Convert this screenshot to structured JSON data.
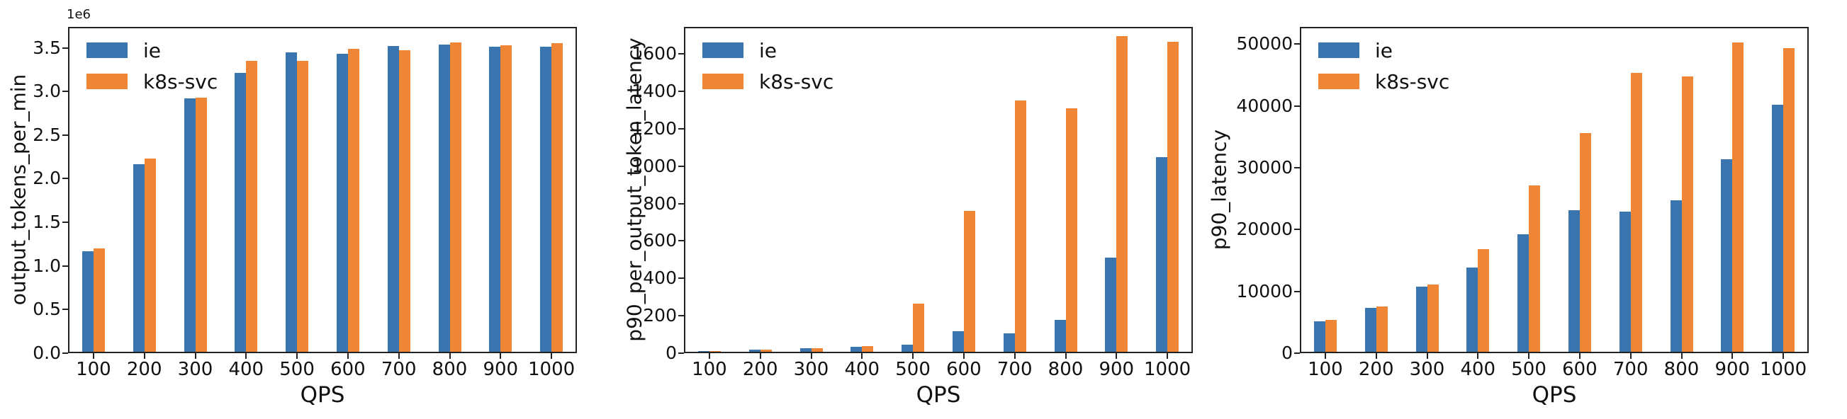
{
  "figure": {
    "background": "#ffffff",
    "xlabel": "QPS",
    "categories": [
      "100",
      "200",
      "300",
      "400",
      "500",
      "600",
      "700",
      "800",
      "900",
      "1000"
    ]
  },
  "colors": {
    "ie": "#3a75af",
    "k8s_svc": "#ef8636",
    "spine": "#222222",
    "text": "#111111"
  },
  "legend": {
    "items": [
      {
        "label": "ie",
        "color": "#3a75af"
      },
      {
        "label": "k8s-svc",
        "color": "#ef8636"
      }
    ]
  },
  "chart_data": [
    {
      "type": "bar",
      "title": "",
      "ylabel": "output_tokens_per_min",
      "xlabel": "QPS",
      "offset_text": "1e6",
      "legend_position": "upper-left",
      "grid": false,
      "categories": [
        100,
        200,
        300,
        400,
        500,
        600,
        700,
        800,
        900,
        1000
      ],
      "series": [
        {
          "name": "ie",
          "color": "#3a75af",
          "values": [
            1170000,
            2170000,
            2920000,
            3210000,
            3450000,
            3430000,
            3520000,
            3540000,
            3510000,
            3510000
          ]
        },
        {
          "name": "k8s-svc",
          "color": "#ef8636",
          "values": [
            1200000,
            2230000,
            2930000,
            3350000,
            3350000,
            3490000,
            3470000,
            3560000,
            3530000,
            3550000
          ]
        }
      ],
      "ylim": [
        0,
        3740000
      ],
      "ytick_values": [
        0,
        500000,
        1000000,
        1500000,
        2000000,
        2500000,
        3000000,
        3500000
      ],
      "ytick_labels": [
        "0.0",
        "0.5",
        "1.0",
        "1.5",
        "2.0",
        "2.5",
        "3.0",
        "3.5"
      ]
    },
    {
      "type": "bar",
      "title": "",
      "ylabel": "p90_per_output_token_latency",
      "xlabel": "QPS",
      "offset_text": "",
      "legend_position": "upper-left",
      "grid": false,
      "categories": [
        100,
        200,
        300,
        400,
        500,
        600,
        700,
        800,
        900,
        1000
      ],
      "series": [
        {
          "name": "ie",
          "color": "#3a75af",
          "values": [
            10,
            18,
            26,
            34,
            47,
            117,
            107,
            177,
            510,
            1050
          ]
        },
        {
          "name": "k8s-svc",
          "color": "#ef8636",
          "values": [
            10,
            18,
            26,
            38,
            265,
            760,
            1350,
            1310,
            1695,
            1665
          ]
        }
      ],
      "ylim": [
        0,
        1745
      ],
      "ytick_values": [
        0,
        200,
        400,
        600,
        800,
        1000,
        1200,
        1400,
        1600
      ],
      "ytick_labels": [
        "0",
        "200",
        "400",
        "600",
        "800",
        "1000",
        "1200",
        "1400",
        "1600"
      ]
    },
    {
      "type": "bar",
      "title": "",
      "ylabel": "p90_latency",
      "xlabel": "QPS",
      "offset_text": "",
      "legend_position": "upper-left",
      "grid": false,
      "categories": [
        100,
        200,
        300,
        400,
        500,
        600,
        700,
        800,
        900,
        1000
      ],
      "series": [
        {
          "name": "ie",
          "color": "#3a75af",
          "values": [
            5200,
            7300,
            10800,
            13900,
            19200,
            23100,
            22900,
            24700,
            31400,
            40200
          ]
        },
        {
          "name": "k8s-svc",
          "color": "#ef8636",
          "values": [
            5400,
            7600,
            11100,
            16800,
            27200,
            35600,
            45300,
            44800,
            50300,
            49400
          ]
        }
      ],
      "ylim": [
        0,
        52800
      ],
      "ytick_values": [
        0,
        10000,
        20000,
        30000,
        40000,
        50000
      ],
      "ytick_labels": [
        "0",
        "10000",
        "20000",
        "30000",
        "40000",
        "50000"
      ]
    }
  ]
}
